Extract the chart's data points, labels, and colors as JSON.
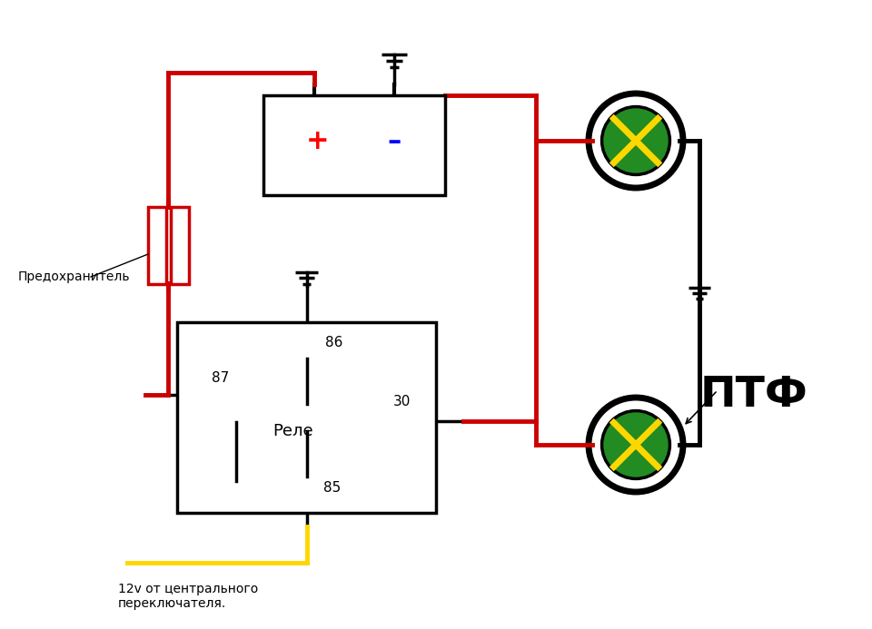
{
  "bg_color": "#ffffff",
  "line_color_red": "#cc0000",
  "line_color_yellow": "#ffff00",
  "line_color_black": "#000000",
  "relay_label": "Реле",
  "fuse_label": "Предохранитель",
  "ptf_label": "ПТФ",
  "yellow_label": "12v от центрального\nпереключателя.",
  "bat_plus": "+",
  "bat_minus": "–",
  "pin_labels": {
    "86": "86",
    "87": "87",
    "30": "30",
    "85": "85"
  }
}
